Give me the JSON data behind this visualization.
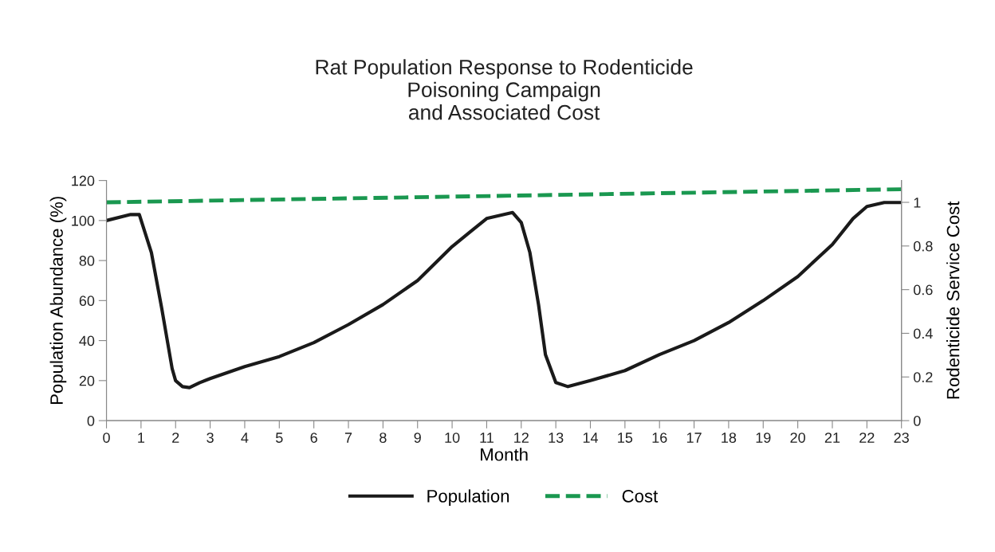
{
  "chart_data": {
    "type": "line",
    "title": "Rat Population Response to Rodenticide\nPoisoning Campaign\nand Associated Cost",
    "xlabel": "Month",
    "ylabel": "Population Abundance (%)",
    "y2label": "Rodenticide Service Cost",
    "xlim": [
      0,
      23
    ],
    "xticks": [
      0,
      1,
      2,
      3,
      4,
      5,
      6,
      7,
      8,
      9,
      10,
      11,
      12,
      13,
      14,
      15,
      16,
      17,
      18,
      19,
      20,
      21,
      22,
      23
    ],
    "ylim": [
      0,
      120
    ],
    "yticks": [
      0,
      20,
      40,
      60,
      80,
      100,
      120
    ],
    "y2lim": [
      0,
      1.1
    ],
    "y2ticks": [
      0,
      0.2,
      0.4,
      0.6,
      0.8,
      1
    ],
    "legend": "bottom",
    "grid": false,
    "series": [
      {
        "name": "Population",
        "color": "#1a1a1a",
        "line_style": "solid",
        "x": [
          0,
          0.7,
          0.95,
          1.3,
          1.6,
          1.9,
          2.0,
          2.2,
          2.4,
          2.7,
          3,
          4,
          5,
          6,
          7,
          8,
          9,
          10,
          10.5,
          11,
          11.5,
          11.75,
          12.0,
          12.25,
          12.5,
          12.7,
          13.0,
          13.35,
          14,
          15,
          16,
          17,
          18,
          19,
          20,
          21,
          21.6,
          22,
          22.5,
          23
        ],
        "values": [
          100,
          103,
          103,
          84,
          56,
          26,
          20,
          17,
          16.5,
          19,
          21,
          27,
          32,
          39,
          48,
          58,
          70,
          87,
          94,
          101,
          103,
          104,
          99,
          84,
          58,
          33,
          19,
          17,
          20,
          25,
          33,
          40,
          49,
          60,
          72,
          88,
          101,
          107,
          109,
          109
        ]
      },
      {
        "name": "Cost",
        "color": "#1a9850",
        "line_style": "dashed",
        "axis": "y2",
        "x": [
          0,
          23
        ],
        "values": [
          1.0,
          1.06
        ]
      }
    ]
  }
}
